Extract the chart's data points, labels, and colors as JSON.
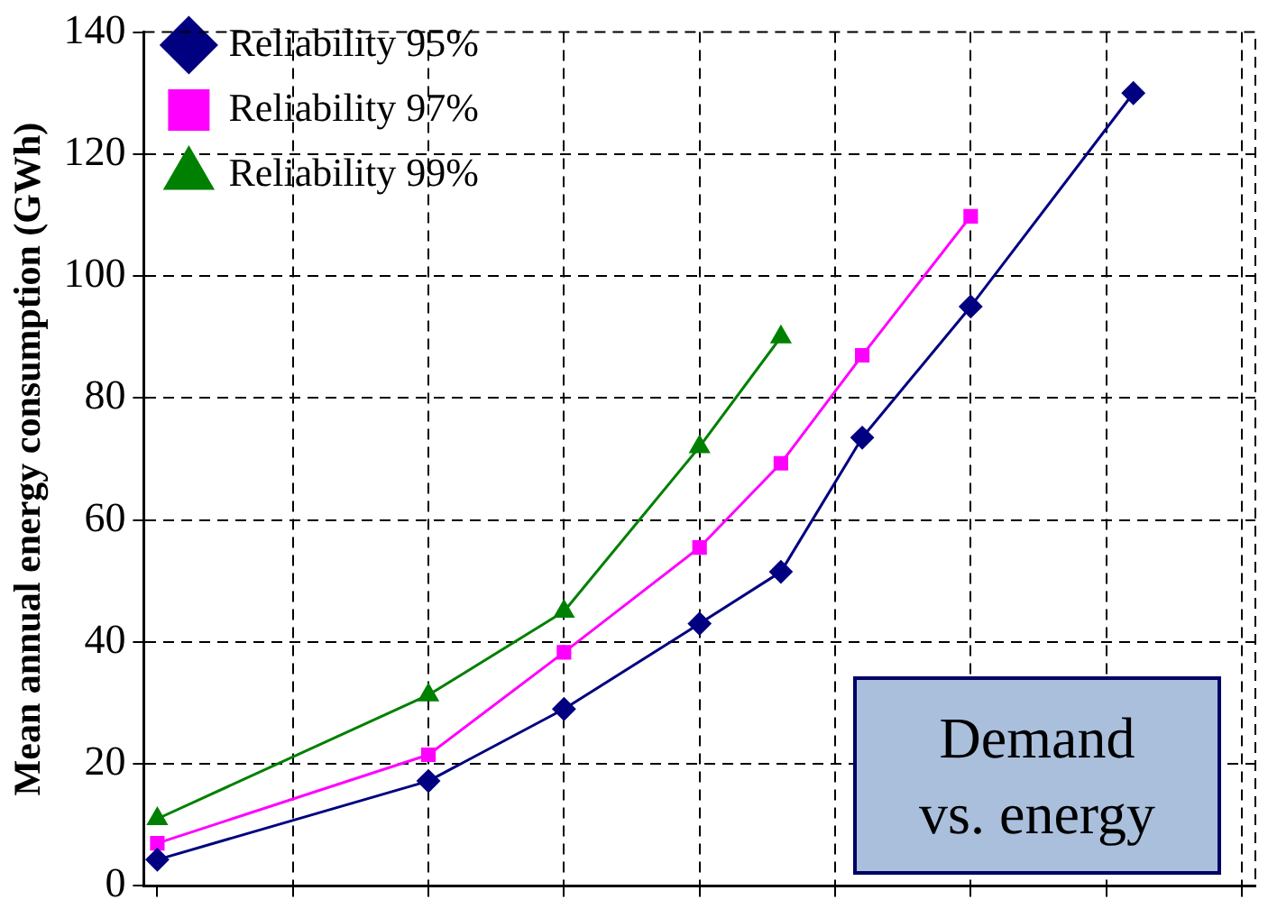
{
  "chart_data": {
    "type": "line",
    "ylabel": "Mean annual energy consumption (GWh)",
    "categories": [
      null,
      null,
      null,
      null,
      null,
      null,
      null,
      null,
      null,
      null,
      null,
      null,
      null,
      null,
      null,
      null,
      null,
      null,
      null,
      null,
      null,
      null,
      null,
      null,
      null,
      null,
      null,
      null,
      null,
      null,
      null,
      null,
      null,
      null,
      null,
      null,
      null,
      null,
      null,
      null,
      null
    ],
    "series": [
      {
        "name": "Reliability 95%",
        "color": "#000080",
        "marker": "diamond",
        "values": [
          4.3,
          null,
          null,
          null,
          null,
          null,
          null,
          null,
          null,
          null,
          17.2,
          null,
          null,
          null,
          null,
          29,
          null,
          null,
          null,
          null,
          43,
          null,
          null,
          51.5,
          null,
          null,
          73.5,
          null,
          null,
          null,
          95,
          null,
          null,
          null,
          null,
          null,
          130,
          null,
          null,
          null,
          null
        ]
      },
      {
        "name": "Reliability 97%",
        "color": "#ff00ff",
        "marker": "square",
        "values": [
          7,
          null,
          null,
          null,
          null,
          null,
          null,
          null,
          null,
          null,
          21.5,
          null,
          null,
          null,
          null,
          38.3,
          null,
          null,
          null,
          null,
          55.5,
          null,
          null,
          69.3,
          null,
          null,
          87,
          null,
          null,
          null,
          109.8,
          null,
          null,
          null,
          null,
          null,
          null,
          null,
          null,
          null,
          null
        ]
      },
      {
        "name": "Reliability 99%",
        "color": "#008000",
        "marker": "triangle",
        "values": [
          11,
          null,
          null,
          null,
          null,
          null,
          null,
          null,
          null,
          null,
          31.3,
          null,
          null,
          null,
          null,
          45,
          null,
          null,
          null,
          null,
          72,
          null,
          null,
          90,
          null,
          null,
          null,
          null,
          null,
          null,
          null,
          null,
          null,
          null,
          null,
          null,
          null,
          null,
          null,
          null,
          null
        ]
      }
    ],
    "ylim": [
      0,
      140
    ],
    "yticks": [
      0,
      20,
      40,
      60,
      80,
      100,
      120,
      140
    ],
    "grid": true,
    "legend": "top left",
    "line_style": "solid",
    "annotations": [
      "Demand vs. energy"
    ]
  }
}
